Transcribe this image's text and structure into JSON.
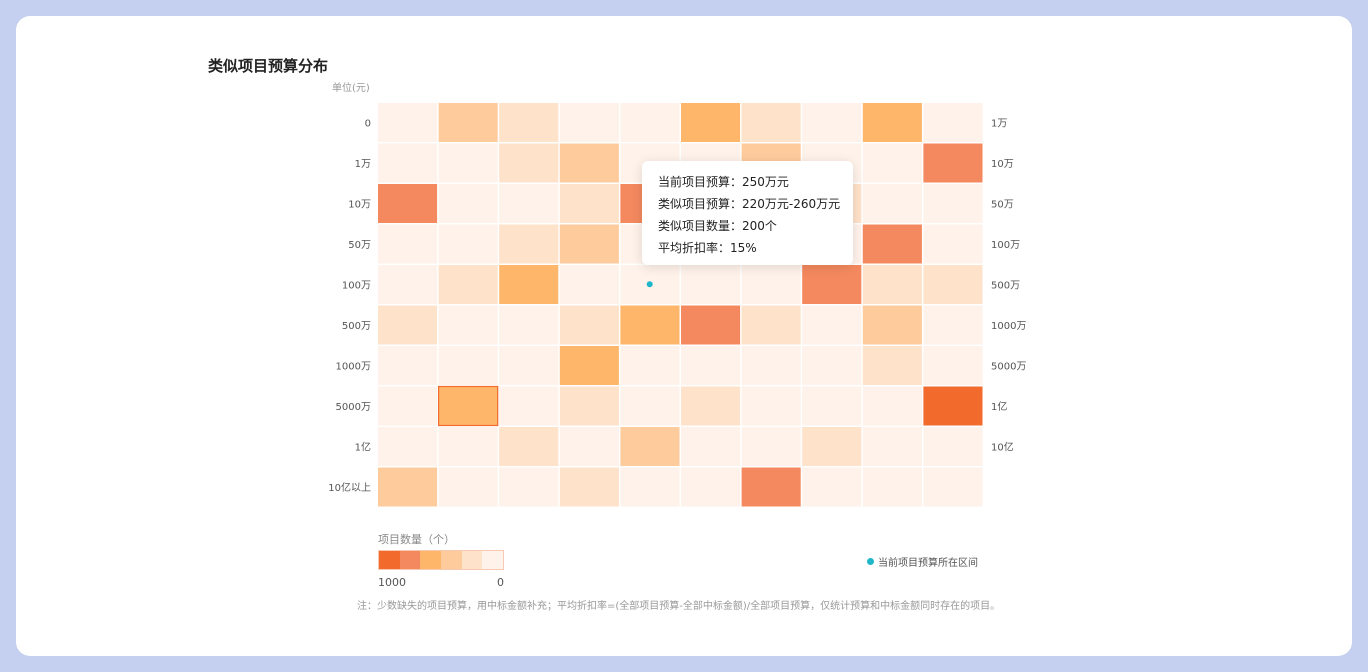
{
  "title": "类似项目预算分布",
  "unit_label": "单位(元)",
  "chart_data": {
    "type": "heatmap",
    "title": "类似项目预算分布",
    "y_labels_left": [
      "0",
      "1万",
      "10万",
      "50万",
      "100万",
      "500万",
      "1000万",
      "5000万",
      "1亿",
      "10亿以上"
    ],
    "y_labels_right": [
      "1万",
      "10万",
      "50万",
      "100万",
      "500万",
      "1000万",
      "5000万",
      "1亿",
      "10亿",
      ""
    ],
    "columns": 10,
    "levels": [
      [
        1,
        3,
        2,
        1,
        1,
        4,
        2,
        1,
        4,
        1
      ],
      [
        1,
        1,
        2,
        3,
        1,
        1,
        3,
        1,
        1,
        5
      ],
      [
        5,
        1,
        1,
        2,
        5,
        1,
        1,
        2,
        1,
        1
      ],
      [
        1,
        1,
        2,
        3,
        1,
        1,
        1,
        1,
        5,
        1
      ],
      [
        1,
        2,
        4,
        1,
        1,
        1,
        1,
        5,
        2,
        2
      ],
      [
        2,
        1,
        1,
        2,
        4,
        5,
        2,
        1,
        3,
        1
      ],
      [
        1,
        1,
        1,
        4,
        1,
        1,
        1,
        1,
        2,
        1
      ],
      [
        1,
        4,
        1,
        2,
        1,
        2,
        1,
        1,
        1,
        6
      ],
      [
        1,
        1,
        2,
        1,
        3,
        1,
        1,
        2,
        1,
        1
      ],
      [
        3,
        1,
        1,
        2,
        1,
        1,
        5,
        1,
        1,
        1
      ]
    ],
    "color_scale": [
      "#f26a2c",
      "#f4895f",
      "#feb66b",
      "#fecb9c",
      "#fee2c9",
      "#fef2ea"
    ],
    "highlighted_cell": {
      "row": 7,
      "col": 1
    },
    "current_marker": {
      "row": 4,
      "col": 4
    },
    "legend": {
      "title": "项目数量（个）",
      "max": "1000",
      "min": "0"
    }
  },
  "tooltip": {
    "line1": "当前项目预算：250万元",
    "line2": "类似项目预算：220万元-260万元",
    "line3": "类似项目数量：200个",
    "line4": "平均折扣率：15%"
  },
  "current_legend_label": "当前项目预算所在区间",
  "note": "注：少数缺失的项目预算，用中标金额补充；平均折扣率=(全部项目预算-全部中标金额)/全部项目预算，仅统计预算和中标金额同时存在的项目。"
}
